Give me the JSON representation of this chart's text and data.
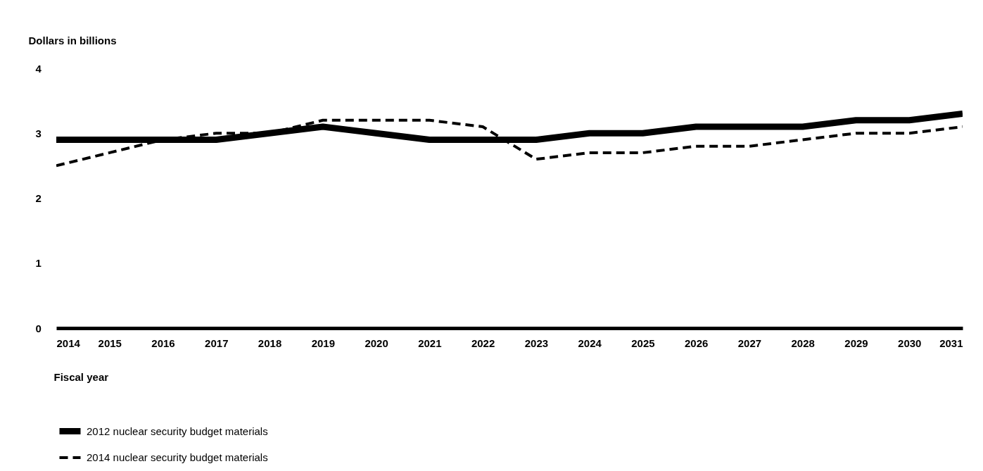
{
  "chart_data": {
    "type": "line",
    "ylabel": "Dollars in billions",
    "xlabel": "Fiscal year",
    "x": [
      2014,
      2015,
      2016,
      2017,
      2018,
      2019,
      2020,
      2021,
      2022,
      2023,
      2024,
      2025,
      2026,
      2027,
      2028,
      2029,
      2030,
      2031
    ],
    "xlim": [
      2014,
      2031
    ],
    "xticks": [
      2014,
      2015,
      2016,
      2017,
      2018,
      2019,
      2020,
      2021,
      2022,
      2023,
      2024,
      2025,
      2026,
      2027,
      2028,
      2029,
      2030,
      2031
    ],
    "ylim": [
      0,
      4
    ],
    "yticks": [
      0,
      1,
      2,
      3,
      4
    ],
    "grid": false,
    "legend": "bottom",
    "marker": "none",
    "series": [
      {
        "name": "2012 nuclear security budget materials",
        "color": "#000000",
        "line_style": "solid",
        "values": [
          2.9,
          2.9,
          2.9,
          2.9,
          3.0,
          3.1,
          3.0,
          2.9,
          2.9,
          2.9,
          3.0,
          3.0,
          3.1,
          3.1,
          3.1,
          3.2,
          3.2,
          3.3
        ]
      },
      {
        "name": "2014 nuclear security budget materials",
        "color": "#000000",
        "line_style": "dashed",
        "values": [
          2.5,
          2.7,
          2.9,
          3.0,
          3.0,
          3.2,
          3.2,
          3.2,
          3.1,
          2.6,
          2.7,
          2.7,
          2.8,
          2.8,
          2.9,
          3.0,
          3.0,
          3.1
        ]
      }
    ]
  }
}
